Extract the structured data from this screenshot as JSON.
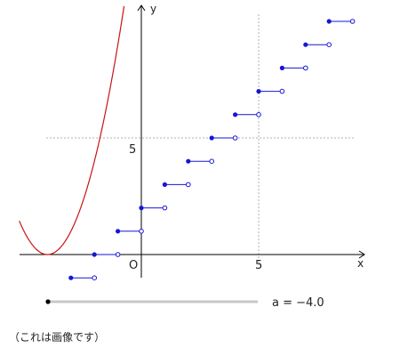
{
  "chart_data": {
    "type": "line",
    "title": "",
    "xlabel": "x",
    "ylabel": "y",
    "origin_label": "O",
    "xlim": [
      -5.3,
      9.4
    ],
    "ylim": [
      -1.1,
      10.6
    ],
    "x_ticks": [
      5
    ],
    "y_ticks": [
      5
    ],
    "grid": "guide lines at x = 5 and y = 5",
    "series": [
      {
        "kind": "parabola",
        "color": "#c81414",
        "description_formula": "y = (x + 4)^2",
        "vertex": [
          -4,
          0
        ],
        "x_range": [
          -5.2,
          0.0
        ]
      },
      {
        "kind": "step",
        "color": "#1616d6",
        "segments": [
          {
            "x0": -3,
            "x1": -2,
            "y": -1
          },
          {
            "x0": -2,
            "x1": -1,
            "y": 0
          },
          {
            "x0": -1,
            "x1": 0,
            "y": 1
          },
          {
            "x0": 0,
            "x1": 1,
            "y": 2
          },
          {
            "x0": 1,
            "x1": 2,
            "y": 3
          },
          {
            "x0": 2,
            "x1": 3,
            "y": 4
          },
          {
            "x0": 3,
            "x1": 4,
            "y": 5
          },
          {
            "x0": 4,
            "x1": 5,
            "y": 6
          },
          {
            "x0": 5,
            "x1": 6,
            "y": 7
          },
          {
            "x0": 6,
            "x1": 7,
            "y": 8
          },
          {
            "x0": 7,
            "x1": 8,
            "y": 9
          },
          {
            "x0": 8,
            "x1": 9,
            "y": 10
          }
        ]
      }
    ]
  },
  "slider": {
    "label": "a = −4.0",
    "value": -4.0
  },
  "caption": "（これは画像です）"
}
